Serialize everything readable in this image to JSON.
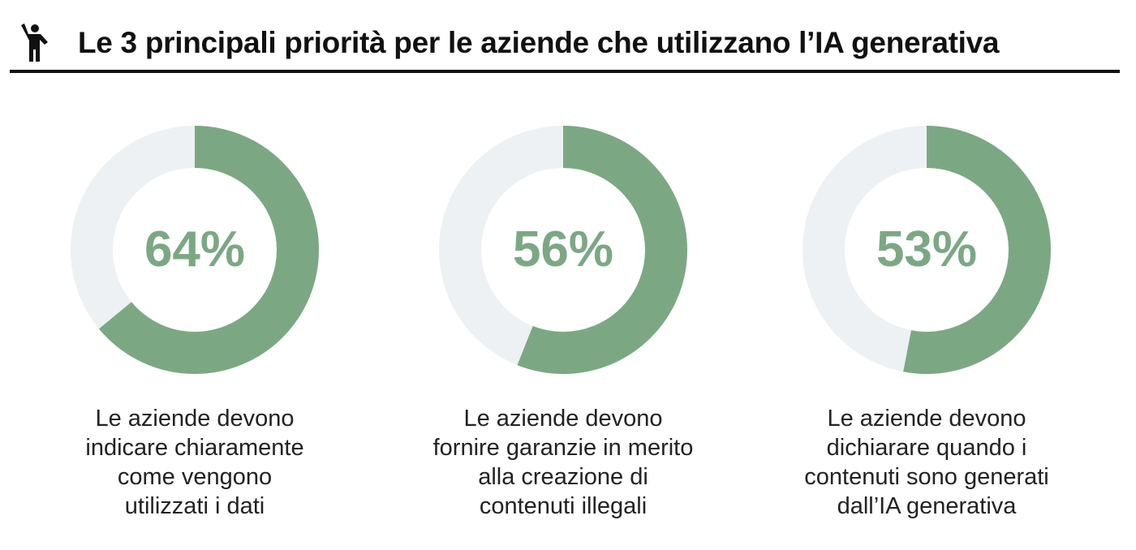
{
  "header": {
    "title": "Le 3 principali priorità per le aziende che utilizzano l’IA generativa",
    "icon": "person-waving-icon"
  },
  "colors": {
    "accent": "#7BA883",
    "track": "#EEF1F4",
    "text": "#111111"
  },
  "chart_data": {
    "type": "pie",
    "title": "Le 3 principali priorità per le aziende che utilizzano l’IA generativa",
    "charts": [
      {
        "value": 64,
        "label": "64%",
        "caption": "Le aziende devono indicare chiaramente come vengono utilizzati i dati"
      },
      {
        "value": 56,
        "label": "56%",
        "caption": "Le aziende devono fornire garanzie in merito alla creazione di contenuti illegali"
      },
      {
        "value": 53,
        "label": "53%",
        "caption": "Le aziende devono dichiarare quando i contenuti sono generati dall’IA generativa"
      }
    ]
  }
}
